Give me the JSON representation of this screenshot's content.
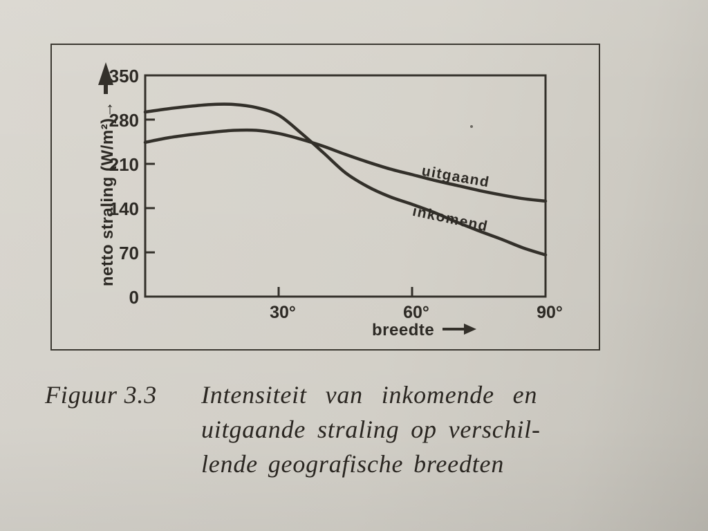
{
  "page": {
    "paper_color": "#d6d3cb",
    "ink_color": "#33302a",
    "text_color": "#2d2a25"
  },
  "chart_data": {
    "type": "line",
    "title": "",
    "xlabel": "breedte",
    "ylabel": "netto straling (W/m²)",
    "xlim": [
      0,
      90
    ],
    "ylim": [
      0,
      350
    ],
    "yticks": [
      0,
      70,
      140,
      210,
      280,
      350
    ],
    "xticks": [
      {
        "value": 30,
        "label": "30°"
      },
      {
        "value": 60,
        "label": "60°"
      },
      {
        "value": 90,
        "label": "90°"
      }
    ],
    "grid": false,
    "legend_position": "labels-on-curves",
    "x": [
      0,
      5,
      10,
      15,
      20,
      25,
      30,
      35,
      40,
      45,
      50,
      55,
      60,
      65,
      70,
      75,
      80,
      85,
      90
    ],
    "series": [
      {
        "name": "inkomend",
        "label": "inkomend",
        "values": [
          292,
          297,
          301,
          304,
          304,
          299,
          287,
          259,
          228,
          196,
          174,
          158,
          146,
          133,
          118,
          104,
          91,
          77,
          66
        ],
        "label_pos": [
          575,
          258
        ],
        "label_angle": 12
      },
      {
        "name": "uitgaand",
        "label": "uitgaand",
        "values": [
          244,
          251,
          256,
          260,
          263,
          263,
          258,
          249,
          238,
          225,
          213,
          202,
          193,
          184,
          176,
          168,
          161,
          155,
          151
        ],
        "label_pos": [
          583,
          197
        ],
        "label_angle": 10
      }
    ]
  },
  "caption": {
    "label": "Figuur 3.3",
    "lines": [
      "Intensiteit van inkomende en",
      "uitgaande straling op verschil-",
      "lende geografische breedten"
    ]
  }
}
